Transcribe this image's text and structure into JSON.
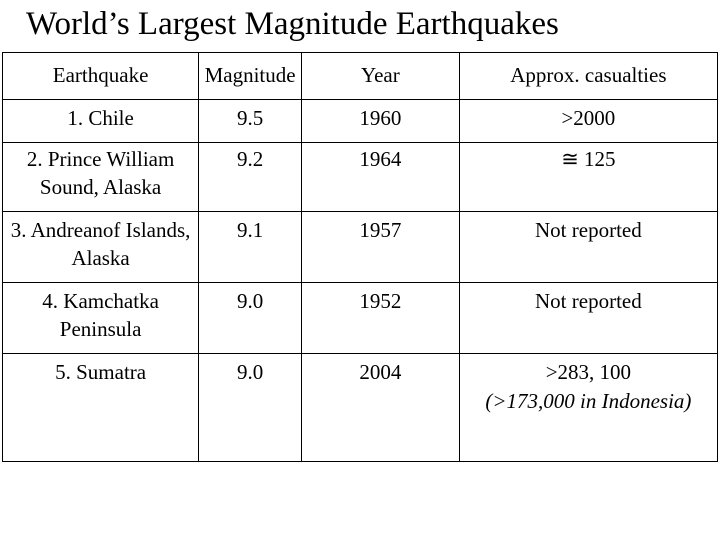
{
  "title": "World’s Largest Magnitude Earthquakes",
  "table": {
    "headers": [
      "Earthquake",
      "Magnitude",
      "Year",
      "Approx. casualties"
    ],
    "rows": [
      {
        "earthquake": "1. Chile",
        "magnitude": "9.5",
        "year": "1960",
        "casualties": ">2000",
        "note": ""
      },
      {
        "earthquake": "2. Prince William Sound, Alaska",
        "magnitude": "9.2",
        "year": "1964",
        "casualties": "≅ 125",
        "note": ""
      },
      {
        "earthquake": "3. Andreanof Islands, Alaska",
        "magnitude": "9.1",
        "year": "1957",
        "casualties": "Not reported",
        "note": ""
      },
      {
        "earthquake": "4. Kamchatka Peninsula",
        "magnitude": "9.0",
        "year": "1952",
        "casualties": "Not reported",
        "note": ""
      },
      {
        "earthquake": "5. Sumatra",
        "magnitude": "9.0",
        "year": "2004",
        "casualties": ">283, 100",
        "note": "(>173,000 in Indonesia)"
      }
    ]
  }
}
